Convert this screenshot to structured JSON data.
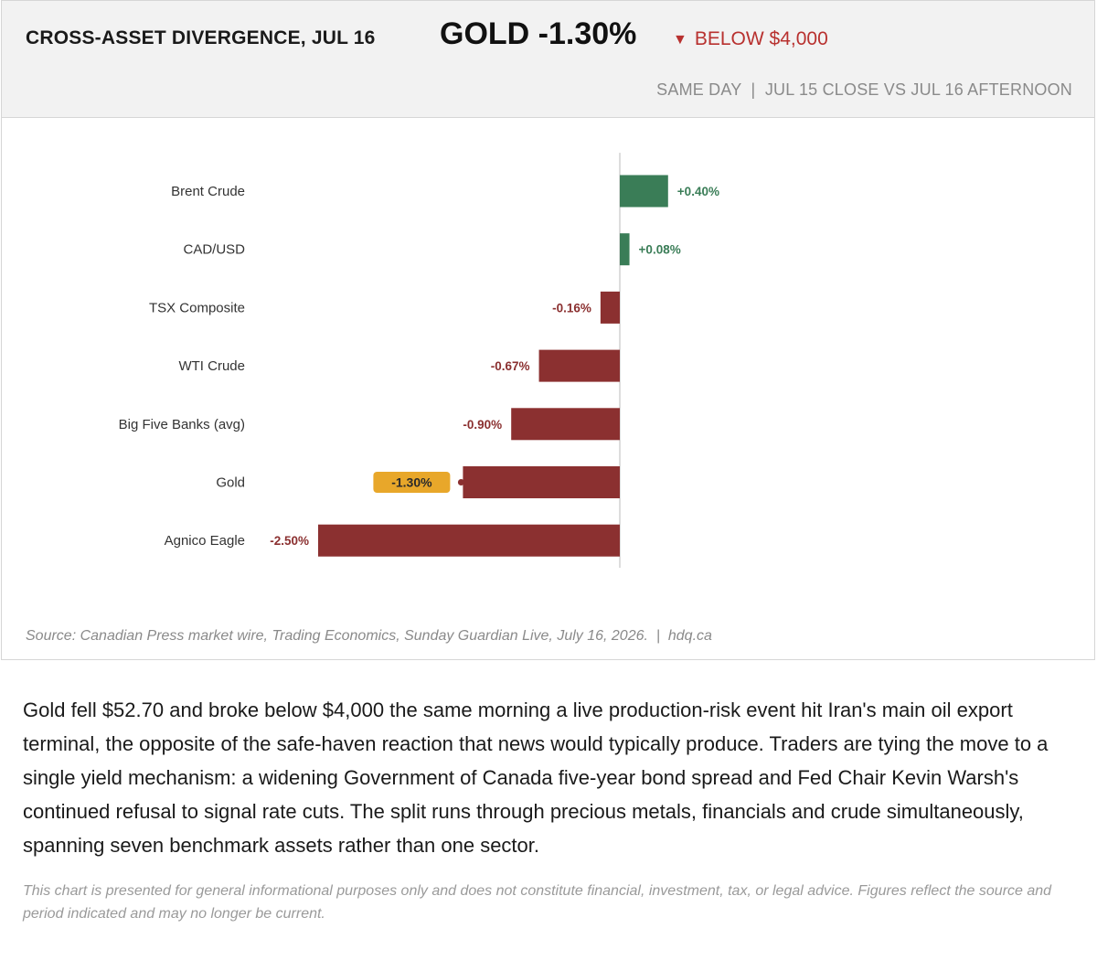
{
  "header": {
    "kicker": "CROSS-ASSET DIVERGENCE, JUL 16",
    "headline": "GOLD -1.30%",
    "alert_icon": "▼",
    "alert_text": "BELOW $4,000",
    "subtitle": "SAME DAY  |  JUL 15 CLOSE VS JUL 16 AFTERNOON"
  },
  "colors": {
    "positive": "#3a7d57",
    "negative": "#8b3030",
    "highlight": "#e8a72a",
    "axis": "#bbbbbb"
  },
  "chart_data": {
    "type": "bar",
    "orientation": "horizontal",
    "unit": "%",
    "categories": [
      "Brent Crude",
      "CAD/USD",
      "TSX Composite",
      "WTI Crude",
      "Big Five Banks (avg)",
      "Gold",
      "Agnico Eagle"
    ],
    "values": [
      0.4,
      0.08,
      -0.16,
      -0.67,
      -0.9,
      -1.3,
      -2.5
    ],
    "labels": [
      "+0.40%",
      "+0.08%",
      "-0.16%",
      "-0.67%",
      "-0.90%",
      "-1.30%",
      "-2.50%"
    ],
    "highlight": "Gold",
    "grid": false,
    "legend": "none"
  },
  "source": "Source: Canadian Press market wire, Trading Economics, Sunday Guardian Live, July 16, 2026.  |  hdq.ca",
  "body": "Gold fell $52.70 and broke below $4,000 the same morning a live production-risk event hit Iran's main oil export terminal, the opposite of the safe-haven reaction that news would typically produce. Traders are tying the move to a single yield mechanism: a widening Government of Canada five-year bond spread and Fed Chair Kevin Warsh's continued refusal to signal rate cuts. The split runs through precious metals, financials and crude simultaneously, spanning seven benchmark assets rather than one sector.",
  "disclaimer": "This chart is presented for general informational purposes only and does not constitute financial, investment, tax, or legal advice. Figures reflect the source and period indicated and may no longer be current."
}
